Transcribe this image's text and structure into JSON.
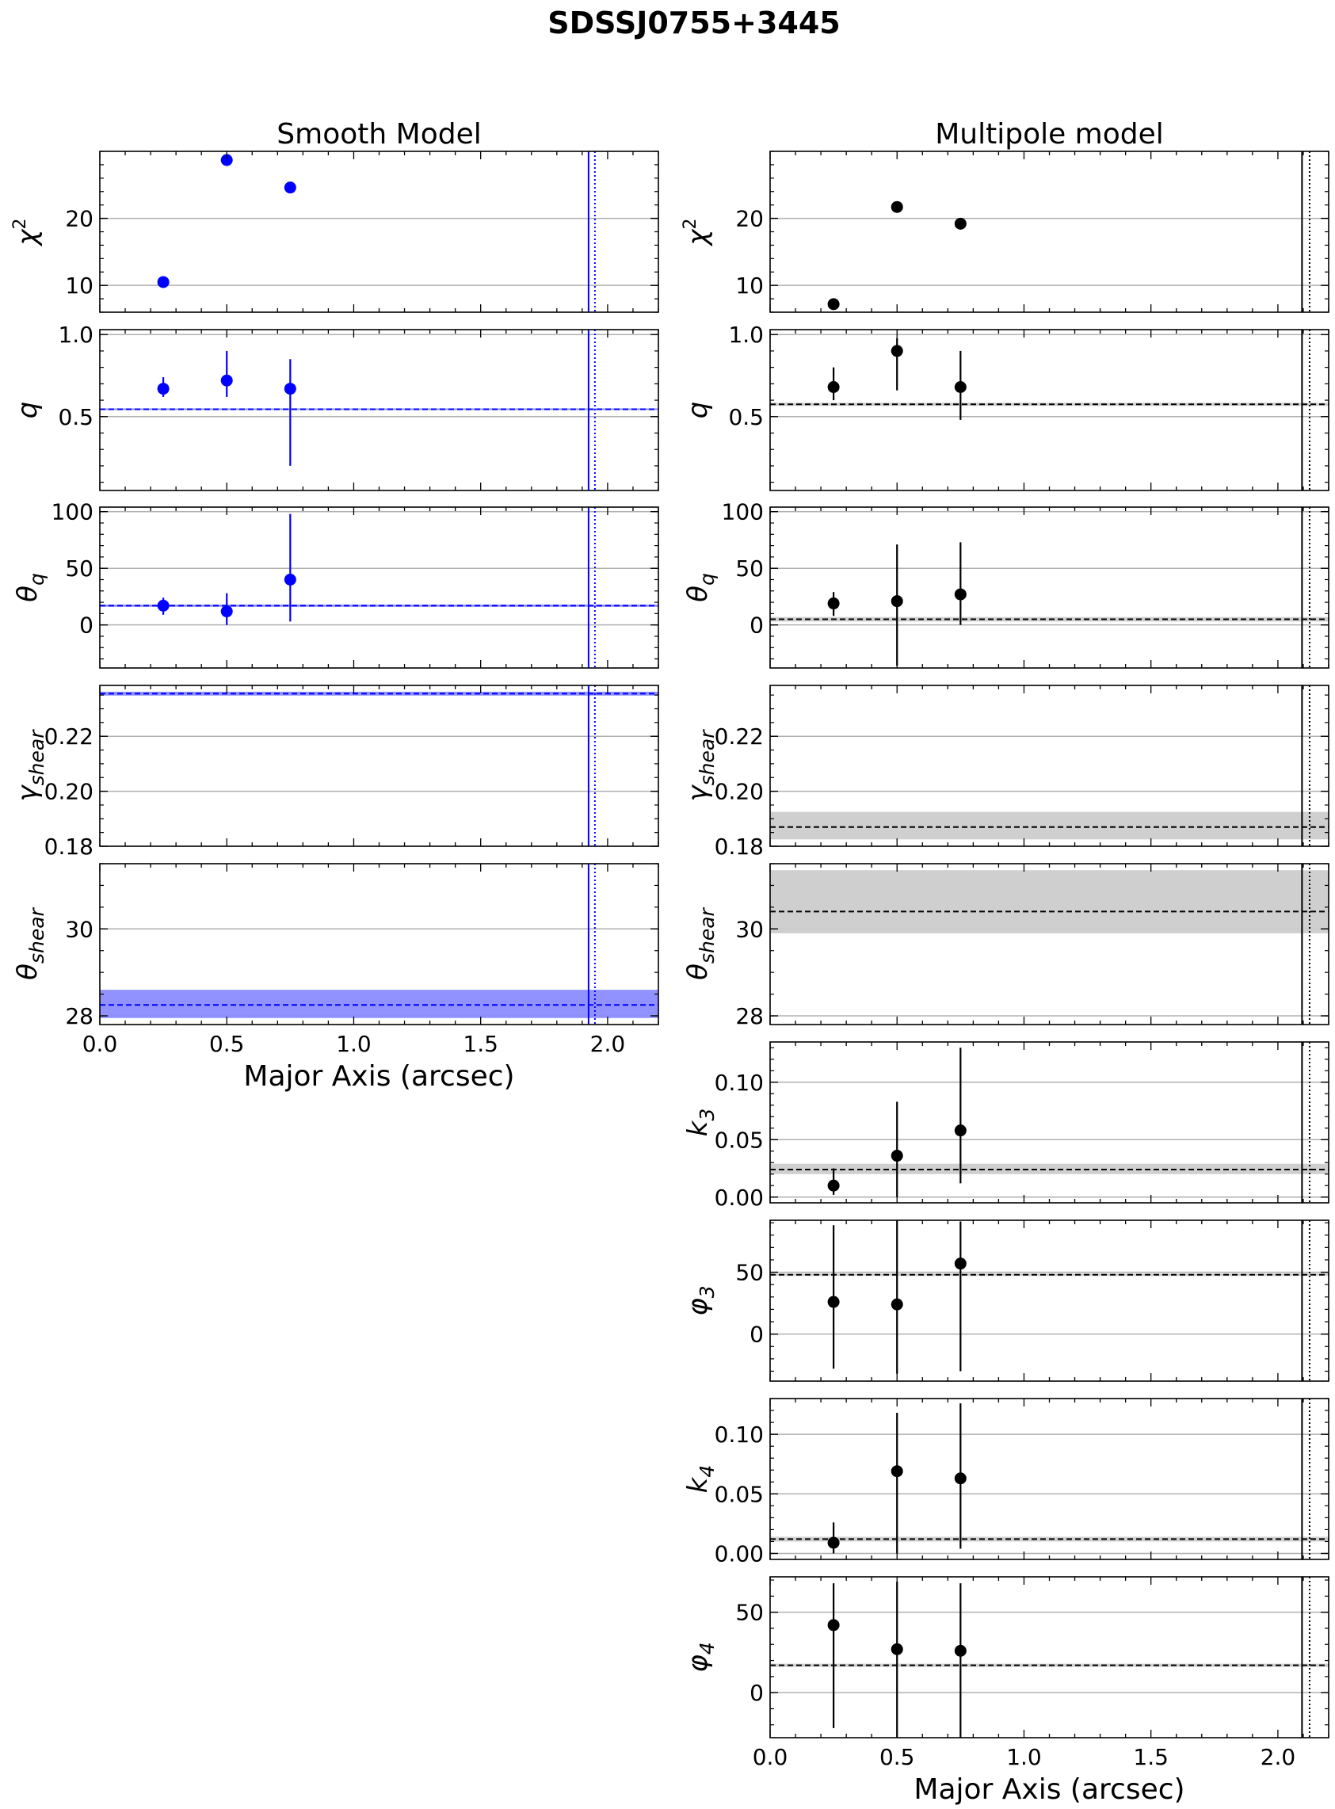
{
  "figure": {
    "title": "SDSSJ0755+3445"
  },
  "chart_data": {
    "type": "scatter",
    "title": "SDSSJ0755+3445",
    "x_label": "Major Axis (arcsec)",
    "x_ticks": [
      0.0,
      0.5,
      1.0,
      1.5,
      2.0
    ],
    "x_tick_labels": [
      "0.0",
      "0.5",
      "1.0",
      "1.5",
      "2.0"
    ],
    "x_minor_step": 0.1,
    "grid": "horizontal",
    "columns": [
      {
        "title": "Smooth Model",
        "color": "#0000ff",
        "band_color": "#8c8cff",
        "xlim": [
          0.0,
          2.2
        ],
        "vlines": [
          {
            "x": 1.925,
            "style": "solid"
          },
          {
            "x": 1.95,
            "style": "dotted"
          }
        ],
        "panels": [
          {
            "ylabel": {
              "base": "χ",
              "sup": "2",
              "sub": ""
            },
            "ylim": [
              6,
              30
            ],
            "yticks": [
              10,
              20
            ],
            "ytick_labels": [
              "10",
              "20"
            ],
            "minor_step": 2,
            "points": [
              {
                "x": 0.25,
                "y": 10.5
              },
              {
                "x": 0.5,
                "y": 28.7
              },
              {
                "x": 0.75,
                "y": 24.6
              }
            ]
          },
          {
            "ylabel": {
              "base": "q",
              "sup": "",
              "sub": ""
            },
            "ylim": [
              0.05,
              1.03
            ],
            "yticks": [
              0.5,
              1.0
            ],
            "ytick_labels": [
              "0.5",
              "1.0"
            ],
            "minor_step": 0.1,
            "hline": 0.545,
            "band": [
              0.54,
              0.55
            ],
            "points": [
              {
                "x": 0.25,
                "y": 0.67,
                "lo": 0.62,
                "hi": 0.74
              },
              {
                "x": 0.5,
                "y": 0.72,
                "lo": 0.62,
                "hi": 0.9
              },
              {
                "x": 0.75,
                "y": 0.67,
                "lo": 0.2,
                "hi": 0.85
              }
            ]
          },
          {
            "ylabel": {
              "base": "θ",
              "sup": "",
              "sub": "q"
            },
            "ylim": [
              -38,
              104
            ],
            "yticks": [
              0,
              50,
              100
            ],
            "ytick_labels": [
              "0",
              "50",
              "100"
            ],
            "minor_step": 10,
            "hline": 17,
            "band": [
              16,
              18
            ],
            "points": [
              {
                "x": 0.25,
                "y": 17,
                "lo": 9,
                "hi": 24
              },
              {
                "x": 0.5,
                "y": 12,
                "lo": 0,
                "hi": 28
              },
              {
                "x": 0.75,
                "y": 40,
                "lo": 3,
                "hi": 98
              }
            ]
          },
          {
            "ylabel": {
              "base": "γ",
              "sup": "",
              "sub": "shear"
            },
            "ylim": [
              0.18,
              0.2385
            ],
            "yticks": [
              0.18,
              0.2,
              0.22
            ],
            "ytick_labels": [
              "0.18",
              "0.20",
              "0.22"
            ],
            "minor_step": 0.005,
            "hline": 0.2355,
            "band": [
              0.2348,
              0.2362
            ],
            "points": []
          },
          {
            "ylabel": {
              "base": "θ",
              "sup": "",
              "sub": "shear"
            },
            "ylim": [
              27.8,
              31.5
            ],
            "yticks": [
              28,
              30
            ],
            "ytick_labels": [
              "28",
              "30"
            ],
            "minor_step": 0.5,
            "hline": 28.25,
            "band": [
              27.95,
              28.6
            ],
            "points": []
          }
        ]
      },
      {
        "title": "Multipole model",
        "color": "#000000",
        "band_color": "#cccccc",
        "xlim": [
          0.0,
          2.2
        ],
        "vlines": [
          {
            "x": 2.095,
            "style": "solid"
          },
          {
            "x": 2.125,
            "style": "dotted"
          }
        ],
        "panels": [
          {
            "ylabel": {
              "base": "χ",
              "sup": "2",
              "sub": ""
            },
            "ylim": [
              6,
              30
            ],
            "yticks": [
              10,
              20
            ],
            "ytick_labels": [
              "10",
              "20"
            ],
            "minor_step": 2,
            "points": [
              {
                "x": 0.25,
                "y": 7.2
              },
              {
                "x": 0.5,
                "y": 21.7
              },
              {
                "x": 0.75,
                "y": 19.2
              }
            ]
          },
          {
            "ylabel": {
              "base": "q",
              "sup": "",
              "sub": ""
            },
            "ylim": [
              0.05,
              1.03
            ],
            "yticks": [
              0.5,
              1.0
            ],
            "ytick_labels": [
              "0.5",
              "1.0"
            ],
            "minor_step": 0.1,
            "hline": 0.575,
            "band": [
              0.565,
              0.585
            ],
            "points": [
              {
                "x": 0.25,
                "y": 0.68,
                "lo": 0.6,
                "hi": 0.8
              },
              {
                "x": 0.5,
                "y": 0.9,
                "lo": 0.66,
                "hi": 0.98
              },
              {
                "x": 0.75,
                "y": 0.68,
                "lo": 0.48,
                "hi": 0.9
              }
            ]
          },
          {
            "ylabel": {
              "base": "θ",
              "sup": "",
              "sub": "q"
            },
            "ylim": [
              -38,
              104
            ],
            "yticks": [
              0,
              50,
              100
            ],
            "ytick_labels": [
              "0",
              "50",
              "100"
            ],
            "minor_step": 10,
            "hline": 5,
            "band": [
              3,
              7
            ],
            "points": [
              {
                "x": 0.25,
                "y": 19,
                "lo": 8,
                "hi": 29
              },
              {
                "x": 0.5,
                "y": 21,
                "lo": -36,
                "hi": 71
              },
              {
                "x": 0.75,
                "y": 27,
                "lo": 0,
                "hi": 73
              }
            ]
          },
          {
            "ylabel": {
              "base": "γ",
              "sup": "",
              "sub": "shear"
            },
            "ylim": [
              0.18,
              0.2385
            ],
            "yticks": [
              0.18,
              0.2,
              0.22
            ],
            "ytick_labels": [
              "0.18",
              "0.20",
              "0.22"
            ],
            "minor_step": 0.005,
            "hline": 0.187,
            "band": [
              0.1825,
              0.1925
            ],
            "points": []
          },
          {
            "ylabel": {
              "base": "θ",
              "sup": "",
              "sub": "shear"
            },
            "ylim": [
              27.8,
              31.5
            ],
            "yticks": [
              28,
              30
            ],
            "ytick_labels": [
              "28",
              "30"
            ],
            "minor_step": 0.5,
            "hline": 30.4,
            "band": [
              29.9,
              31.35
            ],
            "points": []
          },
          {
            "ylabel": {
              "base": "k",
              "sup": "",
              "sub": "3"
            },
            "ylim": [
              -0.005,
              0.135
            ],
            "yticks": [
              0.0,
              0.05,
              0.1
            ],
            "ytick_labels": [
              "0.00",
              "0.05",
              "0.10"
            ],
            "minor_step": 0.01,
            "hline": 0.024,
            "band": [
              0.02,
              0.029
            ],
            "points": [
              {
                "x": 0.25,
                "y": 0.01,
                "lo": 0.002,
                "hi": 0.025
              },
              {
                "x": 0.5,
                "y": 0.036,
                "lo": 0.0,
                "hi": 0.083
              },
              {
                "x": 0.75,
                "y": 0.058,
                "lo": 0.012,
                "hi": 0.13
              }
            ]
          },
          {
            "ylabel": {
              "base": "φ",
              "sup": "",
              "sub": "3"
            },
            "ylim": [
              -38,
              92
            ],
            "yticks": [
              0,
              50
            ],
            "ytick_labels": [
              "0",
              "50"
            ],
            "minor_step": 10,
            "hline": 48,
            "band": [
              47,
              49
            ],
            "points": [
              {
                "x": 0.25,
                "y": 26,
                "lo": -28,
                "hi": 88
              },
              {
                "x": 0.5,
                "y": 24,
                "lo": -32,
                "hi": 92
              },
              {
                "x": 0.75,
                "y": 57,
                "lo": -30,
                "hi": 91
              }
            ]
          },
          {
            "ylabel": {
              "base": "k",
              "sup": "",
              "sub": "4"
            },
            "ylim": [
              -0.005,
              0.13
            ],
            "yticks": [
              0.0,
              0.05,
              0.1
            ],
            "ytick_labels": [
              "0.00",
              "0.05",
              "0.10"
            ],
            "minor_step": 0.01,
            "hline": 0.012,
            "band": [
              0.01,
              0.014
            ],
            "points": [
              {
                "x": 0.25,
                "y": 0.009,
                "lo": 0.0,
                "hi": 0.026
              },
              {
                "x": 0.5,
                "y": 0.069,
                "lo": 0.0,
                "hi": 0.118
              },
              {
                "x": 0.75,
                "y": 0.063,
                "lo": 0.004,
                "hi": 0.126
              }
            ]
          },
          {
            "ylabel": {
              "base": "φ",
              "sup": "",
              "sub": "4"
            },
            "ylim": [
              -28,
              72
            ],
            "yticks": [
              0,
              50
            ],
            "ytick_labels": [
              "0",
              "50"
            ],
            "minor_step": 10,
            "hline": 17,
            "band": [
              16,
              18
            ],
            "points": [
              {
                "x": 0.25,
                "y": 42,
                "lo": -22,
                "hi": 68
              },
              {
                "x": 0.5,
                "y": 27,
                "lo": -28,
                "hi": 69
              },
              {
                "x": 0.75,
                "y": 26,
                "lo": -28,
                "hi": 68
              }
            ]
          }
        ]
      }
    ]
  }
}
